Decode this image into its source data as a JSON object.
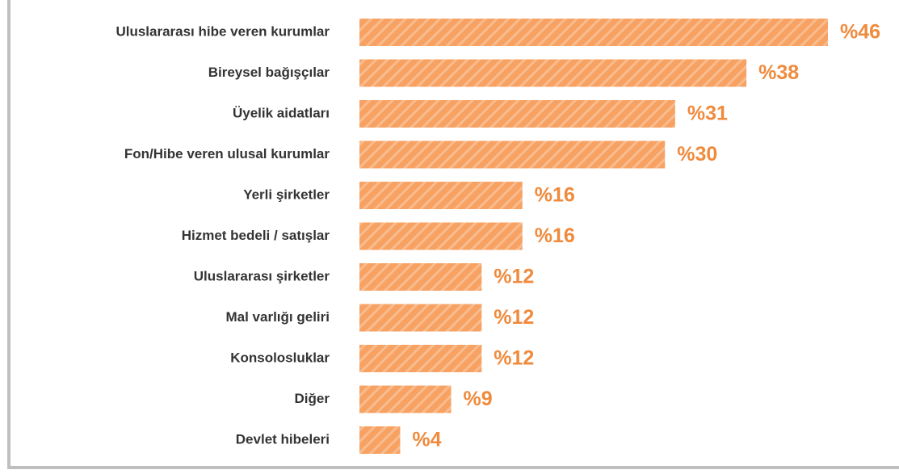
{
  "chart_data": {
    "type": "barh",
    "categories": [
      "Uluslararası hibe veren kurumlar",
      "Bireysel bağışçılar",
      "Üyelik aidatları",
      "Fon/Hibe veren ulusal kurumlar",
      "Yerli şirketler",
      "Hizmet bedeli / satışlar",
      "Uluslararası şirketler",
      "Mal varlığı geliri",
      "Konsolosluklar",
      "Diğer",
      "Devlet hibeleri"
    ],
    "values": [
      46,
      38,
      31,
      30,
      16,
      16,
      12,
      12,
      12,
      9,
      4
    ],
    "value_labels": [
      "%46",
      "%38",
      "%31",
      "%30",
      "%16",
      "%16",
      "%12",
      "%12",
      "%12",
      "%9",
      "%4"
    ],
    "color": "#f7a263",
    "label_color": "#f08a3c"
  }
}
